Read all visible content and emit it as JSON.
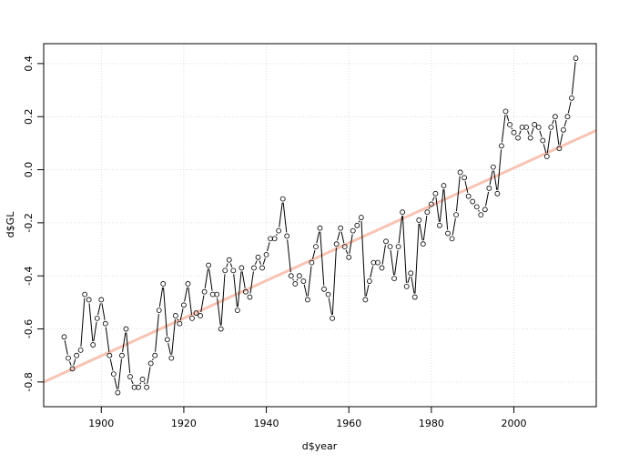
{
  "chart_data": {
    "type": "scatter",
    "style": "points-and-lines",
    "xlabel": "d$year",
    "ylabel": "d$GL",
    "x": [
      1891,
      1892,
      1893,
      1894,
      1895,
      1896,
      1897,
      1898,
      1899,
      1900,
      1901,
      1902,
      1903,
      1904,
      1905,
      1906,
      1907,
      1908,
      1909,
      1910,
      1911,
      1912,
      1913,
      1914,
      1915,
      1916,
      1917,
      1918,
      1919,
      1920,
      1921,
      1922,
      1923,
      1924,
      1925,
      1926,
      1927,
      1928,
      1929,
      1930,
      1931,
      1932,
      1933,
      1934,
      1935,
      1936,
      1937,
      1938,
      1939,
      1940,
      1941,
      1942,
      1943,
      1944,
      1945,
      1946,
      1947,
      1948,
      1949,
      1950,
      1951,
      1952,
      1953,
      1954,
      1955,
      1956,
      1957,
      1958,
      1959,
      1960,
      1961,
      1962,
      1963,
      1964,
      1965,
      1966,
      1967,
      1968,
      1969,
      1970,
      1971,
      1972,
      1973,
      1974,
      1975,
      1976,
      1977,
      1978,
      1979,
      1980,
      1981,
      1982,
      1983,
      1984,
      1985,
      1986,
      1987,
      1988,
      1989,
      1990,
      1991,
      1992,
      1993,
      1994,
      1995,
      1996,
      1997,
      1998,
      1999,
      2000,
      2001,
      2002,
      2003,
      2004,
      2005,
      2006,
      2007,
      2008,
      2009,
      2010,
      2011,
      2012,
      2013,
      2014,
      2015
    ],
    "series": [
      {
        "color": "#000000",
        "values": [
          -0.63,
          -0.71,
          -0.75,
          -0.7,
          -0.68,
          -0.47,
          -0.49,
          -0.66,
          -0.56,
          -0.49,
          -0.58,
          -0.7,
          -0.77,
          -0.84,
          -0.7,
          -0.6,
          -0.78,
          -0.82,
          -0.82,
          -0.79,
          -0.82,
          -0.73,
          -0.7,
          -0.53,
          -0.43,
          -0.64,
          -0.71,
          -0.55,
          -0.58,
          -0.51,
          -0.43,
          -0.56,
          -0.54,
          -0.55,
          -0.46,
          -0.36,
          -0.47,
          -0.47,
          -0.6,
          -0.38,
          -0.34,
          -0.38,
          -0.53,
          -0.37,
          -0.46,
          -0.48,
          -0.37,
          -0.33,
          -0.37,
          -0.32,
          -0.26,
          -0.26,
          -0.23,
          -0.11,
          -0.25,
          -0.4,
          -0.43,
          -0.4,
          -0.42,
          -0.49,
          -0.35,
          -0.29,
          -0.22,
          -0.45,
          -0.47,
          -0.56,
          -0.28,
          -0.22,
          -0.29,
          -0.33,
          -0.23,
          -0.21,
          -0.18,
          -0.49,
          -0.42,
          -0.35,
          -0.35,
          -0.37,
          -0.27,
          -0.29,
          -0.41,
          -0.29,
          -0.16,
          -0.44,
          -0.39,
          -0.48,
          -0.19,
          -0.28,
          -0.16,
          -0.13,
          -0.09,
          -0.21,
          -0.06,
          -0.24,
          -0.26,
          -0.17,
          -0.01,
          -0.03,
          -0.1,
          -0.12,
          -0.14,
          -0.17,
          -0.15,
          -0.07,
          0.01,
          -0.09,
          0.09,
          0.22,
          0.17,
          0.14,
          0.12,
          0.16,
          0.16,
          0.12,
          0.17,
          0.16,
          0.11,
          0.05,
          0.16,
          0.2,
          0.08,
          0.15,
          0.2,
          0.27,
          0.42
        ]
      }
    ],
    "trend_line": {
      "color": "#f7c4b4",
      "x": [
        1886.04,
        2019.96
      ],
      "y": [
        -0.8,
        0.148
      ]
    },
    "xlim": [
      1886.04,
      2019.96
    ],
    "ylim": [
      -0.893,
      0.475
    ],
    "xticks": [
      1900,
      1920,
      1940,
      1960,
      1980,
      2000
    ],
    "yticks": [
      -0.8,
      -0.6,
      -0.4,
      -0.2,
      {
        "value": 0,
        "label": "0.0"
      },
      0.2,
      0.4
    ],
    "grid": true
  }
}
